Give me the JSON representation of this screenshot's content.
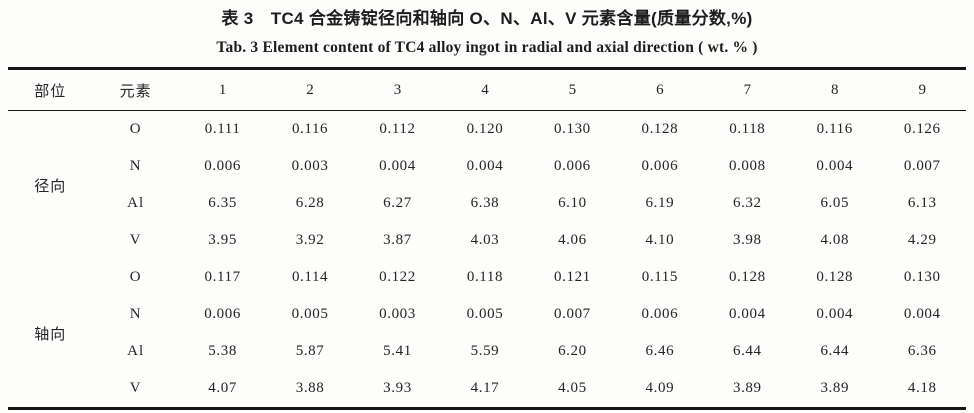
{
  "page": {
    "background": "#fdfdfc",
    "text_color": "#242424",
    "rule_color": "#161616"
  },
  "caption": {
    "title_zh": "表 3　TC4 合金铸锭径向和轴向 O、N、Al、V 元素含量(质量分数,%)",
    "title_en": "Tab. 3   Element content of TC4 alloy ingot in radial and axial direction ( wt. % )"
  },
  "chart_data": {
    "type": "table",
    "columns": [
      "部位",
      "元素",
      "1",
      "2",
      "3",
      "4",
      "5",
      "6",
      "7",
      "8",
      "9"
    ],
    "groups": [
      {
        "position": "径向",
        "rows": [
          {
            "element": "O",
            "values": [
              "0.111",
              "0.116",
              "0.112",
              "0.120",
              "0.130",
              "0.128",
              "0.118",
              "0.116",
              "0.126"
            ]
          },
          {
            "element": "N",
            "values": [
              "0.006",
              "0.003",
              "0.004",
              "0.004",
              "0.006",
              "0.006",
              "0.008",
              "0.004",
              "0.007"
            ]
          },
          {
            "element": "Al",
            "values": [
              "6.35",
              "6.28",
              "6.27",
              "6.38",
              "6.10",
              "6.19",
              "6.32",
              "6.05",
              "6.13"
            ]
          },
          {
            "element": "V",
            "values": [
              "3.95",
              "3.92",
              "3.87",
              "4.03",
              "4.06",
              "4.10",
              "3.98",
              "4.08",
              "4.29"
            ]
          }
        ]
      },
      {
        "position": "轴向",
        "rows": [
          {
            "element": "O",
            "values": [
              "0.117",
              "0.114",
              "0.122",
              "0.118",
              "0.121",
              "0.115",
              "0.128",
              "0.128",
              "0.130"
            ]
          },
          {
            "element": "N",
            "values": [
              "0.006",
              "0.005",
              "0.003",
              "0.005",
              "0.007",
              "0.006",
              "0.004",
              "0.004",
              "0.004"
            ]
          },
          {
            "element": "Al",
            "values": [
              "5.38",
              "5.87",
              "5.41",
              "5.59",
              "6.20",
              "6.46",
              "6.44",
              "6.44",
              "6.36"
            ]
          },
          {
            "element": "V",
            "values": [
              "4.07",
              "3.88",
              "3.93",
              "4.17",
              "4.05",
              "4.09",
              "3.89",
              "3.89",
              "4.18"
            ]
          }
        ]
      }
    ]
  }
}
